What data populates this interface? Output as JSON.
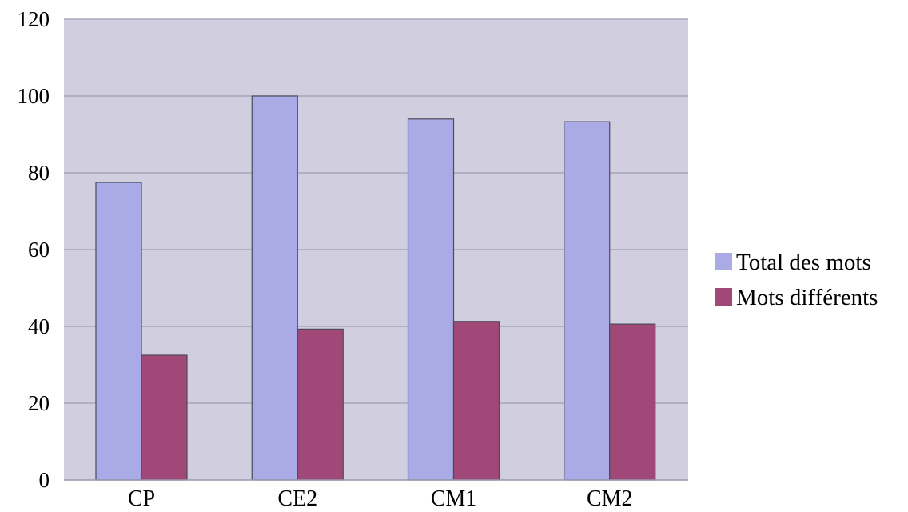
{
  "chart_data": {
    "type": "bar",
    "title": "",
    "xlabel": "",
    "ylabel": "",
    "categories": [
      "CP",
      "CE2",
      "CM1",
      "CM2"
    ],
    "series": [
      {
        "name": "Total des mots",
        "values": [
          77.5,
          100,
          94,
          93.3
        ],
        "color": "#aaaae6"
      },
      {
        "name": "Mots différents",
        "values": [
          32.5,
          39.3,
          41.3,
          40.6
        ],
        "color": "#a04878"
      }
    ],
    "ylim": [
      0,
      120
    ],
    "yticks": [
      "0",
      "20",
      "40",
      "60",
      "80",
      "100",
      "120"
    ],
    "grid": true,
    "legend_position": "right",
    "plot_background": "#d1cfdf",
    "grid_color": "#a7a6bb"
  }
}
